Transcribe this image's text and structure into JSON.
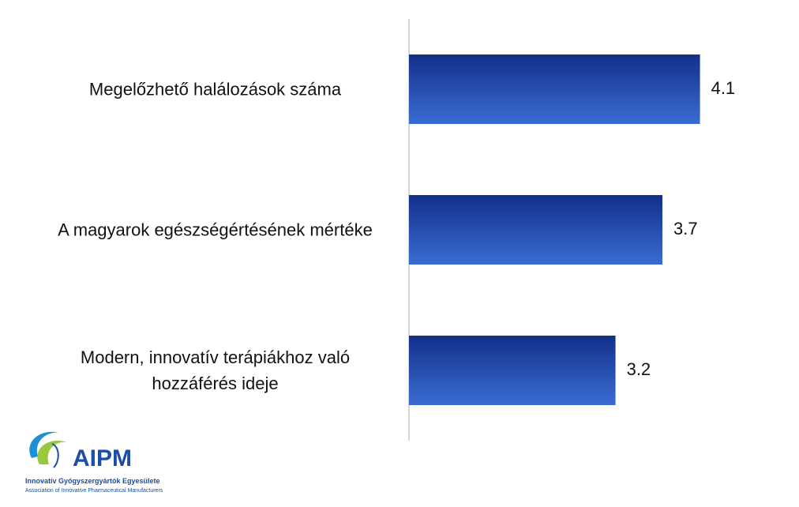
{
  "chart_data": {
    "type": "bar",
    "orientation": "horizontal",
    "categories": [
      "Megelőzhető halálozások száma",
      "A magyarok egészségértésének mértéke",
      "Modern, innovatív terápiákhoz való hozzáférés ideje"
    ],
    "values": [
      4.1,
      3.7,
      3.2
    ],
    "xlim": [
      1,
      5
    ]
  },
  "logo": {
    "name": "AIPM",
    "tagline": "Innovatív Gyógyszergyártók Egyesülete",
    "subtitle": "Association of Innovative Pharmaceutical Manufacturers"
  }
}
